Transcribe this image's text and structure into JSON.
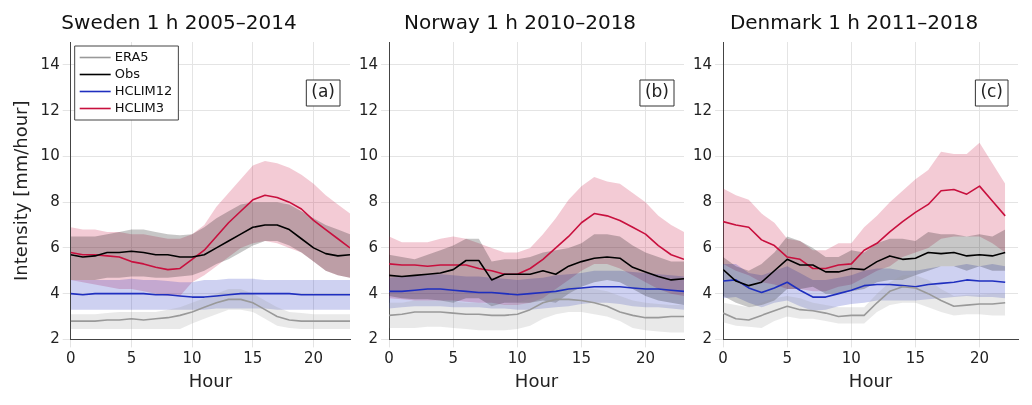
{
  "chart_data": [
    {
      "type": "line",
      "title": "Sweden 1 h 2005–2014",
      "xlabel": "Hour",
      "ylabel": "Intensity [mm/hour]",
      "annotations": [
        "(a)"
      ],
      "xlim": [
        0,
        23
      ],
      "xticks": [
        0,
        5,
        10,
        15,
        20
      ],
      "ylim": [
        2,
        15
      ],
      "yticks": [
        2,
        4,
        6,
        8,
        10,
        12,
        14
      ],
      "grid": true,
      "legend": "top left",
      "marker": "none",
      "line_style": "solid",
      "x": [
        0,
        1,
        2,
        3,
        4,
        5,
        6,
        7,
        8,
        9,
        10,
        11,
        12,
        13,
        14,
        15,
        16,
        17,
        18,
        19,
        20,
        21,
        22,
        23
      ],
      "series": [
        {
          "name": "ERA5",
          "color": "#999999",
          "values": [
            2.8,
            2.8,
            2.8,
            2.85,
            2.85,
            2.9,
            2.85,
            2.9,
            2.95,
            3.05,
            3.2,
            3.4,
            3.6,
            3.75,
            3.75,
            3.6,
            3.3,
            3.0,
            2.85,
            2.8,
            2.8,
            2.8,
            2.8,
            2.8
          ],
          "lower": [
            2.45,
            2.45,
            2.45,
            2.45,
            2.45,
            2.45,
            2.45,
            2.45,
            2.45,
            2.45,
            2.7,
            2.9,
            3.1,
            3.3,
            3.3,
            3.2,
            2.9,
            2.6,
            2.5,
            2.45,
            2.45,
            2.45,
            2.45,
            2.45
          ],
          "upper": [
            3.1,
            3.1,
            3.1,
            3.15,
            3.2,
            3.2,
            3.2,
            3.2,
            3.3,
            3.4,
            3.6,
            3.8,
            4.0,
            4.2,
            4.2,
            4.0,
            3.7,
            3.4,
            3.2,
            3.15,
            3.1,
            3.1,
            3.1,
            3.1
          ]
        },
        {
          "name": "Obs",
          "color": "#000000",
          "values": [
            5.7,
            5.6,
            5.65,
            5.8,
            5.8,
            5.85,
            5.8,
            5.7,
            5.7,
            5.6,
            5.6,
            5.7,
            6.0,
            6.3,
            6.6,
            6.9,
            7.0,
            7.0,
            6.8,
            6.4,
            6.0,
            5.75,
            5.65,
            5.7
          ],
          "lower": [
            4.6,
            4.6,
            4.6,
            4.7,
            4.7,
            4.75,
            4.75,
            4.7,
            4.7,
            4.75,
            4.8,
            5.0,
            5.3,
            5.5,
            5.8,
            6.1,
            6.3,
            6.3,
            6.1,
            5.8,
            5.4,
            5.0,
            4.8,
            4.7
          ],
          "upper": [
            6.5,
            6.5,
            6.5,
            6.6,
            6.7,
            6.8,
            6.8,
            6.7,
            6.6,
            6.55,
            6.6,
            6.9,
            7.3,
            7.6,
            7.9,
            8.0,
            8.0,
            8.0,
            7.9,
            7.6,
            7.3,
            7.0,
            6.8,
            6.6
          ]
        },
        {
          "name": "HCLIM12",
          "color": "#1f2fbf",
          "values": [
            4.0,
            3.95,
            4.0,
            4.0,
            4.0,
            4.0,
            4.0,
            3.95,
            3.95,
            3.9,
            3.85,
            3.85,
            3.9,
            3.95,
            4.0,
            4.0,
            4.0,
            4.0,
            4.0,
            3.95,
            3.95,
            3.95,
            3.95,
            3.95
          ],
          "lower": [
            3.3,
            3.3,
            3.3,
            3.3,
            3.3,
            3.3,
            3.3,
            3.3,
            3.3,
            3.3,
            3.3,
            3.3,
            3.35,
            3.35,
            3.35,
            3.35,
            3.35,
            3.3,
            3.3,
            3.3,
            3.3,
            3.3,
            3.3,
            3.3
          ],
          "upper": [
            4.6,
            4.6,
            4.6,
            4.6,
            4.6,
            4.65,
            4.6,
            4.6,
            4.55,
            4.5,
            4.5,
            4.6,
            4.6,
            4.65,
            4.65,
            4.65,
            4.6,
            4.6,
            4.6,
            4.6,
            4.6,
            4.6,
            4.6,
            4.6
          ]
        },
        {
          "name": "HCLIM3",
          "color": "#c8103e",
          "values": [
            5.8,
            5.7,
            5.7,
            5.65,
            5.6,
            5.4,
            5.3,
            5.15,
            5.05,
            5.1,
            5.5,
            5.9,
            6.5,
            7.1,
            7.6,
            8.1,
            8.3,
            8.2,
            8.0,
            7.7,
            7.2,
            6.8,
            6.4,
            6.0
          ],
          "lower": [
            4.6,
            4.5,
            4.4,
            4.3,
            4.2,
            4.2,
            4.1,
            4.0,
            3.9,
            3.9,
            4.5,
            4.8,
            5.2,
            5.6,
            6.0,
            6.2,
            6.3,
            6.2,
            6.0,
            5.8,
            5.4,
            5.0,
            4.8,
            4.7
          ],
          "upper": [
            6.9,
            6.8,
            6.8,
            6.7,
            6.7,
            6.6,
            6.6,
            6.5,
            6.4,
            6.4,
            6.6,
            7.0,
            7.8,
            8.4,
            9.0,
            9.6,
            9.8,
            9.7,
            9.5,
            9.2,
            8.8,
            8.3,
            7.9,
            7.5
          ]
        }
      ]
    },
    {
      "type": "line",
      "title": "Norway 1 h 2010–2018",
      "xlabel": "Hour",
      "annotations": [
        "(b)"
      ],
      "xlim": [
        0,
        23
      ],
      "xticks": [
        0,
        5,
        10,
        15,
        20
      ],
      "ylim": [
        2,
        15
      ],
      "yticks": [
        2,
        4,
        6,
        8,
        10,
        12,
        14
      ],
      "grid": true,
      "marker": "none",
      "line_style": "solid",
      "x": [
        0,
        1,
        2,
        3,
        4,
        5,
        6,
        7,
        8,
        9,
        10,
        11,
        12,
        13,
        14,
        15,
        16,
        17,
        18,
        19,
        20,
        21,
        22,
        23
      ],
      "series": [
        {
          "color": "#999999",
          "values": [
            3.05,
            3.1,
            3.2,
            3.2,
            3.2,
            3.15,
            3.1,
            3.1,
            3.05,
            3.05,
            3.1,
            3.3,
            3.6,
            3.75,
            3.75,
            3.7,
            3.6,
            3.45,
            3.2,
            3.05,
            2.95,
            2.95,
            3.0,
            3.0
          ],
          "lower": [
            2.5,
            2.5,
            2.5,
            2.55,
            2.55,
            2.5,
            2.45,
            2.4,
            2.4,
            2.4,
            2.45,
            2.6,
            2.9,
            3.1,
            3.2,
            3.2,
            3.1,
            3.0,
            2.8,
            2.5,
            2.4,
            2.35,
            2.3,
            2.3
          ],
          "upper": [
            3.6,
            3.6,
            3.7,
            3.7,
            3.7,
            3.65,
            3.6,
            3.6,
            3.55,
            3.55,
            3.6,
            3.8,
            4.0,
            4.2,
            4.3,
            4.3,
            4.2,
            4.1,
            3.9,
            3.7,
            3.6,
            3.55,
            3.5,
            3.5
          ]
        },
        {
          "color": "#000000",
          "values": [
            4.8,
            4.75,
            4.8,
            4.85,
            4.9,
            5.05,
            5.45,
            5.45,
            4.6,
            4.85,
            4.85,
            4.85,
            5.0,
            4.85,
            5.2,
            5.4,
            5.55,
            5.6,
            5.55,
            5.15,
            4.95,
            4.75,
            4.6,
            4.65
          ],
          "lower": [
            3.9,
            3.8,
            3.75,
            3.75,
            3.7,
            3.6,
            3.8,
            3.8,
            3.45,
            3.6,
            3.6,
            3.6,
            3.7,
            3.6,
            4.0,
            4.3,
            4.5,
            4.6,
            4.5,
            4.2,
            3.9,
            3.7,
            3.6,
            3.5
          ],
          "upper": [
            5.7,
            5.6,
            5.5,
            5.7,
            5.9,
            6.1,
            6.4,
            6.4,
            5.4,
            5.5,
            5.5,
            5.6,
            5.8,
            5.9,
            6.0,
            6.2,
            6.6,
            6.6,
            6.5,
            6.1,
            5.8,
            5.6,
            5.4,
            5.4
          ]
        },
        {
          "color": "#1f2fbf",
          "values": [
            4.1,
            4.1,
            4.15,
            4.2,
            4.2,
            4.15,
            4.1,
            4.05,
            4.05,
            4.0,
            3.95,
            4.0,
            4.05,
            4.1,
            4.2,
            4.25,
            4.3,
            4.3,
            4.3,
            4.25,
            4.2,
            4.2,
            4.15,
            4.1
          ],
          "lower": [
            3.35,
            3.4,
            3.45,
            3.45,
            3.45,
            3.4,
            3.4,
            3.4,
            3.35,
            3.35,
            3.3,
            3.3,
            3.35,
            3.4,
            3.45,
            3.55,
            3.6,
            3.6,
            3.55,
            3.45,
            3.4,
            3.4,
            3.35,
            3.3
          ],
          "upper": [
            4.7,
            4.75,
            4.8,
            4.85,
            4.85,
            4.8,
            4.75,
            4.75,
            4.7,
            4.65,
            4.6,
            4.65,
            4.7,
            4.8,
            4.85,
            4.9,
            5.0,
            5.0,
            5.0,
            4.95,
            4.9,
            4.85,
            4.8,
            4.75
          ]
        },
        {
          "color": "#c8103e",
          "values": [
            5.3,
            5.25,
            5.25,
            5.2,
            5.25,
            5.25,
            5.25,
            5.1,
            5.0,
            4.85,
            4.85,
            5.1,
            5.5,
            6.0,
            6.5,
            7.1,
            7.5,
            7.4,
            7.2,
            6.9,
            6.6,
            6.1,
            5.7,
            5.5
          ],
          "lower": [
            3.8,
            3.75,
            3.7,
            3.7,
            3.7,
            3.7,
            3.65,
            3.6,
            3.6,
            3.5,
            3.5,
            3.6,
            3.8,
            4.2,
            4.6,
            5.0,
            5.3,
            5.3,
            5.1,
            4.8,
            4.5,
            4.2,
            4.0,
            3.9
          ],
          "upper": [
            6.5,
            6.25,
            6.25,
            6.25,
            6.4,
            6.5,
            6.4,
            6.2,
            6.0,
            5.8,
            5.8,
            6.0,
            6.6,
            7.3,
            8.1,
            8.7,
            9.1,
            8.9,
            8.8,
            8.4,
            8.0,
            7.4,
            7.0,
            6.7
          ]
        }
      ]
    },
    {
      "type": "line",
      "title": "Denmark 1 h 2011–2018",
      "xlabel": "Hour",
      "annotations": [
        "(c)"
      ],
      "xlim": [
        0,
        23
      ],
      "xticks": [
        0,
        5,
        10,
        15,
        20
      ],
      "ylim": [
        2,
        15
      ],
      "yticks": [
        2,
        4,
        6,
        8,
        10,
        12,
        14
      ],
      "grid": true,
      "marker": "none",
      "line_style": "solid",
      "x": [
        0,
        1,
        2,
        3,
        4,
        5,
        6,
        7,
        8,
        9,
        10,
        11,
        12,
        13,
        14,
        15,
        16,
        17,
        18,
        19,
        20,
        21,
        22
      ],
      "series": [
        {
          "color": "#999999",
          "values": [
            3.15,
            2.9,
            2.85,
            3.05,
            3.25,
            3.45,
            3.3,
            3.25,
            3.15,
            3.0,
            3.05,
            3.05,
            3.6,
            4.1,
            4.3,
            4.25,
            4.0,
            3.7,
            3.45,
            3.5,
            3.55,
            3.55,
            3.6
          ],
          "lower": [
            2.75,
            2.6,
            2.55,
            2.5,
            2.8,
            3.0,
            2.9,
            2.9,
            2.8,
            2.7,
            2.7,
            2.7,
            3.2,
            3.5,
            3.6,
            3.6,
            3.4,
            3.2,
            3.05,
            3.1,
            3.1,
            3.05,
            3.05
          ],
          "upper": [
            3.6,
            3.5,
            3.4,
            3.6,
            3.8,
            3.9,
            3.8,
            3.6,
            3.5,
            3.4,
            3.4,
            3.4,
            4.0,
            4.5,
            4.8,
            4.8,
            4.6,
            4.2,
            3.9,
            3.95,
            3.95,
            4.0,
            4.0
          ]
        },
        {
          "color": "#000000",
          "values": [
            5.05,
            4.55,
            4.35,
            4.5,
            5.0,
            5.5,
            5.25,
            5.25,
            4.95,
            4.95,
            5.1,
            5.05,
            5.4,
            5.65,
            5.5,
            5.55,
            5.8,
            5.75,
            5.8,
            5.65,
            5.7,
            5.65,
            5.8
          ],
          "lower": [
            3.9,
            3.6,
            3.4,
            3.5,
            3.7,
            4.2,
            4.2,
            4.3,
            4.0,
            4.0,
            4.1,
            4.2,
            4.5,
            4.6,
            4.6,
            4.8,
            5.0,
            5.2,
            5.2,
            5.0,
            5.2,
            5.0,
            5.0
          ],
          "upper": [
            5.6,
            5.2,
            5.0,
            5.3,
            5.8,
            6.5,
            6.3,
            6.0,
            5.6,
            5.6,
            5.9,
            5.8,
            6.2,
            6.4,
            6.4,
            6.3,
            6.7,
            6.6,
            6.6,
            6.5,
            6.6,
            6.5,
            6.8
          ]
        },
        {
          "color": "#1f2fbf",
          "values": [
            4.55,
            4.6,
            4.25,
            4.05,
            4.25,
            4.5,
            4.15,
            3.85,
            3.85,
            4.0,
            4.15,
            4.35,
            4.4,
            4.4,
            4.35,
            4.3,
            4.4,
            4.45,
            4.5,
            4.6,
            4.55,
            4.55,
            4.5
          ],
          "lower": [
            3.8,
            3.85,
            3.6,
            3.4,
            3.6,
            3.7,
            3.45,
            3.25,
            3.3,
            3.45,
            3.55,
            3.6,
            3.7,
            3.7,
            3.7,
            3.7,
            3.75,
            3.8,
            3.85,
            3.9,
            3.85,
            3.85,
            3.8
          ],
          "upper": [
            5.3,
            5.3,
            4.9,
            4.8,
            5.0,
            5.2,
            4.9,
            4.6,
            4.6,
            4.7,
            4.8,
            5.0,
            5.1,
            5.1,
            5.0,
            5.0,
            5.1,
            5.2,
            5.2,
            5.3,
            5.2,
            5.3,
            5.2
          ]
        },
        {
          "color": "#c8103e",
          "values": [
            7.15,
            7.0,
            6.9,
            6.35,
            6.1,
            5.6,
            5.5,
            5.1,
            5.1,
            5.25,
            5.3,
            5.9,
            6.2,
            6.7,
            7.15,
            7.55,
            7.9,
            8.5,
            8.55,
            8.35,
            8.7,
            8.05,
            7.4
          ],
          "lower": [
            5.3,
            5.0,
            4.8,
            4.5,
            4.4,
            4.2,
            4.2,
            4.1,
            4.1,
            4.3,
            4.4,
            4.7,
            5.0,
            5.2,
            5.6,
            5.8,
            6.0,
            6.4,
            6.5,
            6.5,
            6.5,
            6.2,
            5.8
          ],
          "upper": [
            8.6,
            8.3,
            8.1,
            7.5,
            7.1,
            6.4,
            6.3,
            5.9,
            5.9,
            6.2,
            6.2,
            6.9,
            7.4,
            8.0,
            8.5,
            9.0,
            9.4,
            10.2,
            10.1,
            10.1,
            10.6,
            9.7,
            8.8
          ]
        }
      ]
    }
  ]
}
